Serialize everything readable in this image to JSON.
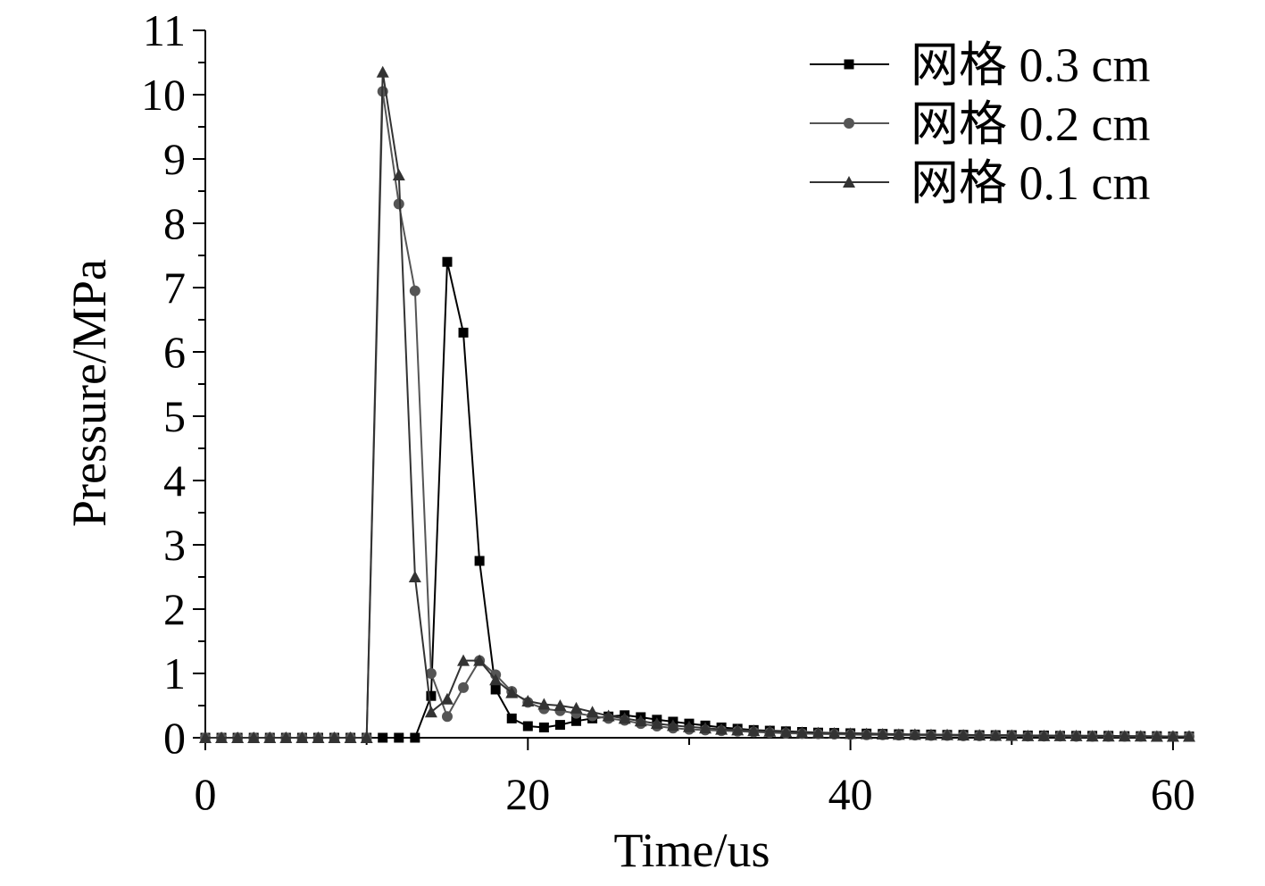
{
  "chart_data": {
    "type": "line",
    "title": "",
    "xlabel": "Time/us",
    "ylabel": "Pressure/MPa",
    "xlim": [
      0,
      61
    ],
    "ylim": [
      0,
      11
    ],
    "xticks": [
      0,
      20,
      40,
      60
    ],
    "yticks": [
      0,
      1,
      2,
      3,
      4,
      5,
      6,
      7,
      8,
      9,
      10,
      11
    ],
    "grid": false,
    "legend_position": "top-right",
    "series": [
      {
        "name": "网格 0.3 cm",
        "marker": "square",
        "color": "#000000",
        "x": [
          0,
          1,
          2,
          3,
          4,
          5,
          6,
          7,
          8,
          9,
          10,
          11,
          12,
          13,
          14,
          15,
          16,
          17,
          18,
          19,
          20,
          21,
          22,
          23,
          24,
          25,
          26,
          27,
          28,
          29,
          30,
          31,
          32,
          33,
          34,
          35,
          36,
          37,
          38,
          39,
          40,
          41,
          42,
          43,
          44,
          45,
          46,
          47,
          48,
          49,
          50,
          51,
          52,
          53,
          54,
          55,
          56,
          57,
          58,
          59,
          60,
          61
        ],
        "y": [
          0,
          0,
          0,
          0,
          0,
          0,
          0,
          0,
          0,
          0,
          0,
          0,
          0,
          0,
          0.65,
          7.4,
          6.3,
          2.75,
          0.75,
          0.3,
          0.18,
          0.16,
          0.2,
          0.26,
          0.3,
          0.33,
          0.35,
          0.32,
          0.28,
          0.25,
          0.22,
          0.19,
          0.16,
          0.14,
          0.12,
          0.11,
          0.1,
          0.09,
          0.08,
          0.075,
          0.07,
          0.065,
          0.06,
          0.055,
          0.05,
          0.05,
          0.045,
          0.045,
          0.04,
          0.04,
          0.04,
          0.035,
          0.035,
          0.03,
          0.03,
          0.03,
          0.03,
          0.025,
          0.025,
          0.025,
          0.02,
          0.02
        ]
      },
      {
        "name": "网格 0.2 cm",
        "marker": "circle",
        "color": "#555555",
        "x": [
          0,
          1,
          2,
          3,
          4,
          5,
          6,
          7,
          8,
          9,
          10,
          11,
          12,
          13,
          14,
          15,
          16,
          17,
          18,
          19,
          20,
          21,
          22,
          23,
          24,
          25,
          26,
          27,
          28,
          29,
          30,
          31,
          32,
          33,
          34,
          35,
          36,
          37,
          38,
          39,
          40,
          41,
          42,
          43,
          44,
          45,
          46,
          47,
          48,
          49,
          50,
          51,
          52,
          53,
          54,
          55,
          56,
          57,
          58,
          59,
          60,
          61
        ],
        "y": [
          0,
          0,
          0,
          0,
          0,
          0,
          0,
          0,
          0,
          0,
          0,
          10.05,
          8.3,
          6.95,
          1.0,
          0.33,
          0.78,
          1.2,
          0.98,
          0.72,
          0.55,
          0.45,
          0.42,
          0.38,
          0.34,
          0.3,
          0.27,
          0.22,
          0.18,
          0.15,
          0.13,
          0.12,
          0.11,
          0.1,
          0.09,
          0.08,
          0.07,
          0.065,
          0.06,
          0.055,
          0.05,
          0.045,
          0.045,
          0.04,
          0.04,
          0.035,
          0.035,
          0.03,
          0.03,
          0.03,
          0.03,
          0.025,
          0.025,
          0.025,
          0.02,
          0.02,
          0.02,
          0.02,
          0.02,
          0.02,
          0.02,
          0.02
        ]
      },
      {
        "name": "网格 0.1 cm",
        "marker": "triangle",
        "color": "#333333",
        "x": [
          0,
          1,
          2,
          3,
          4,
          5,
          6,
          7,
          8,
          9,
          10,
          11,
          12,
          13,
          14,
          15,
          16,
          17,
          18,
          19,
          20,
          21,
          22,
          23,
          24,
          25,
          26,
          27,
          28,
          29,
          30,
          31,
          32,
          33,
          34,
          35,
          36,
          37,
          38,
          39,
          40,
          41,
          42,
          43,
          44,
          45,
          46,
          47,
          48,
          49,
          50,
          51,
          52,
          53,
          54,
          55,
          56,
          57,
          58,
          59,
          60,
          61
        ],
        "y": [
          0,
          0,
          0,
          0,
          0,
          0,
          0,
          0,
          0,
          0,
          0,
          10.35,
          8.75,
          2.5,
          0.4,
          0.6,
          1.2,
          1.2,
          0.9,
          0.7,
          0.57,
          0.52,
          0.5,
          0.46,
          0.4,
          0.34,
          0.3,
          0.26,
          0.22,
          0.19,
          0.17,
          0.15,
          0.13,
          0.12,
          0.11,
          0.1,
          0.09,
          0.08,
          0.075,
          0.07,
          0.065,
          0.06,
          0.055,
          0.05,
          0.05,
          0.045,
          0.045,
          0.04,
          0.04,
          0.035,
          0.035,
          0.03,
          0.03,
          0.03,
          0.03,
          0.025,
          0.025,
          0.025,
          0.025,
          0.02,
          0.02,
          0.02
        ]
      }
    ]
  }
}
